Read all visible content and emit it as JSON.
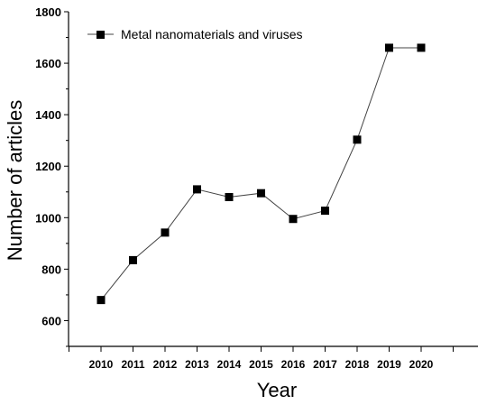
{
  "chart_data": {
    "type": "line",
    "xlabel": "Year",
    "ylabel": "Number of articles",
    "categories": [
      "2010",
      "2011",
      "2012",
      "2013",
      "2014",
      "2015",
      "2016",
      "2017",
      "2018",
      "2019",
      "2020"
    ],
    "yticks": [
      "600",
      "800",
      "1000",
      "1200",
      "1400",
      "1600",
      "1800"
    ],
    "ylim": [
      500,
      1800
    ],
    "series": [
      {
        "name": "Metal nanomaterials and viruses",
        "values": [
          680,
          835,
          942,
          1110,
          1080,
          1095,
          995,
          1027,
          1303,
          1660,
          1660
        ]
      }
    ],
    "legend": "top-left",
    "grid": false,
    "marker": "square",
    "line_color": "#444444",
    "marker_color": "#000000"
  }
}
